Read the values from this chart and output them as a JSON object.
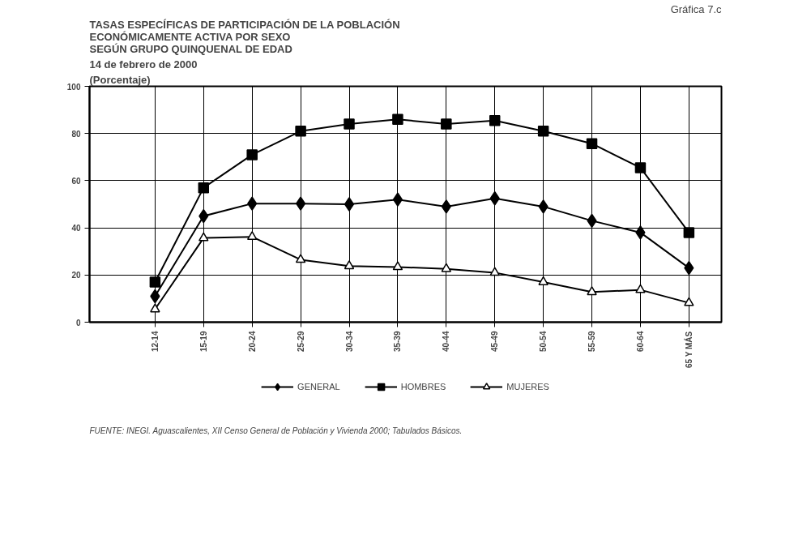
{
  "chart_data": {
    "type": "line",
    "title": "TASAS ESPECÍFICAS DE PARTICIPACIÓN DE LA POBLACIÓN\nECONÓMICAMENTE ACTIVA POR SEXO\nSEGÚN GRUPO QUINQUENAL DE EDAD",
    "subtitle": "14 de febrero de 2000",
    "ylabel": "(Porcentaje)",
    "annotations": [
      "Gráfica 7.c",
      "FUENTE: INEGI.",
      "Aguascalientes, XII Censo General de Población y Vivienda 2000; Tabulados Básicos."
    ],
    "categories": [
      "12-14",
      "15-19",
      "20-24",
      "25-29",
      "30-34",
      "35-39",
      "40-44",
      "45-49",
      "50-54",
      "55-59",
      "60-64",
      "65 Y MÁS"
    ],
    "series": [
      {
        "name": "GENERAL",
        "color": "#000000",
        "marker": "diamond",
        "values": [
          11,
          45,
          50.3,
          50.3,
          50,
          52,
          49,
          52.5,
          49,
          43,
          38,
          23
        ]
      },
      {
        "name": "HOMBRES",
        "color": "#000000",
        "marker": "square",
        "values": [
          17,
          57,
          71,
          81,
          84,
          86,
          84,
          85.5,
          81,
          75.7,
          65.5,
          38
        ]
      },
      {
        "name": "MUJERES",
        "color": "#000000",
        "marker": "triangle",
        "values": [
          5.5,
          35.7,
          36.2,
          26.5,
          23.8,
          23.4,
          22.6,
          21,
          17,
          12.8,
          13.7,
          8.2
        ]
      }
    ],
    "ylim": [
      0,
      100
    ],
    "yticks": [
      0,
      20,
      40,
      60,
      80,
      100
    ],
    "grid": true,
    "legend": "bottom",
    "line_style": "solid"
  }
}
